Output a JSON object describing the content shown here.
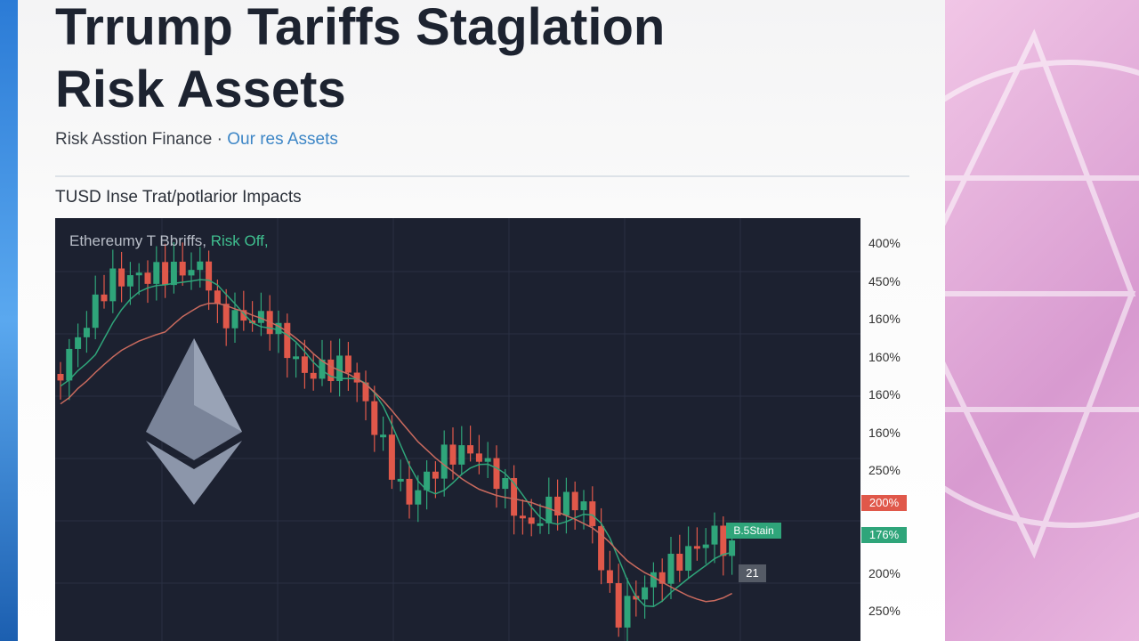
{
  "header": {
    "title_lines": [
      "Trrump Tariffs Staglation",
      "Risk Assets"
    ],
    "byline": "Risk Asstion Finance ·",
    "byline_link": "Our res Assets"
  },
  "chart": {
    "caption": "TUSD Inse Trat/potlarior Impacts",
    "overlay_label": "Ethereumy T Bbriffs,",
    "overlay_highlight": "Risk Off,",
    "axis_labels": [
      "400%",
      "450%",
      "160%",
      "160%",
      "160%",
      "160%",
      "250%",
      "200%",
      "176%",
      "200%",
      "250%"
    ],
    "badges": [
      "B.5Stain",
      "21"
    ]
  }
}
